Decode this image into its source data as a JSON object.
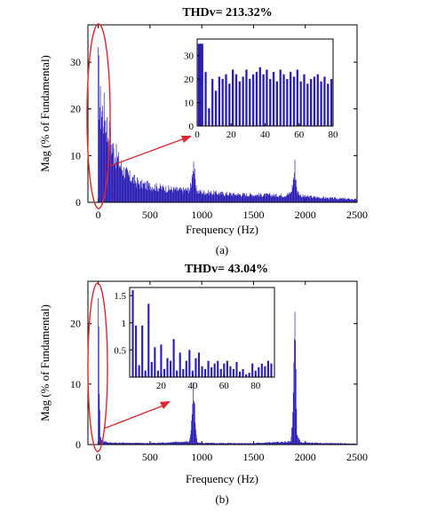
{
  "colors": {
    "spectrum": "#2a1eb4",
    "annotation": "#e3262b",
    "axis": "#000000",
    "background": "#ffffff"
  },
  "chart_data": [
    {
      "type": "bar",
      "title": "THDv= 213.32%",
      "xlabel": "Frequency (Hz)",
      "ylabel": "Mag (% of Fundamental)",
      "caption": "(a)",
      "xlim": [
        -100,
        2500
      ],
      "ylim": [
        0,
        38
      ],
      "xticks": [
        0,
        500,
        1000,
        1500,
        2000,
        2500
      ],
      "yticks": [
        0,
        10,
        20,
        30
      ],
      "grid": false,
      "spectrum_envelope": {
        "x": [
          0,
          20,
          40,
          60,
          80,
          100,
          150,
          200,
          250,
          300,
          400,
          500,
          600,
          700,
          800,
          880,
          900,
          920,
          940,
          960,
          1000,
          1200,
          1400,
          1600,
          1800,
          1860,
          1880,
          1900,
          1920,
          1960,
          2000,
          2200,
          2500
        ],
        "y": [
          35,
          26,
          25,
          24,
          22,
          19,
          14,
          11,
          8.5,
          7,
          5,
          4.5,
          4,
          3.6,
          3.3,
          3.5,
          5,
          12,
          4,
          3,
          2.8,
          2.4,
          2.1,
          2.0,
          1.9,
          2.5,
          5,
          10,
          3,
          1.8,
          1.6,
          1.2,
          0.8
        ]
      },
      "inset": {
        "type": "bar",
        "xlim": [
          0,
          80
        ],
        "ylim": [
          0,
          37
        ],
        "xticks": [
          0,
          20,
          40,
          60,
          80
        ],
        "yticks": [
          0,
          10,
          20,
          30
        ],
        "x": [
          1,
          2,
          3,
          5,
          7,
          9,
          11,
          13,
          15,
          17,
          19,
          21,
          23,
          25,
          27,
          29,
          31,
          33,
          35,
          37,
          39,
          41,
          43,
          45,
          47,
          49,
          51,
          53,
          55,
          57,
          59,
          61,
          63,
          65,
          67,
          69,
          71,
          73,
          75,
          77,
          79
        ],
        "values": [
          35,
          35,
          35,
          23,
          7.5,
          20,
          15,
          21,
          20,
          22,
          18,
          24,
          22,
          19,
          21,
          24,
          20,
          22,
          23,
          25,
          22,
          24,
          20,
          23,
          19,
          24,
          22,
          20,
          23,
          21,
          24,
          19,
          22,
          18,
          20,
          21,
          22,
          19,
          21,
          18,
          20
        ]
      },
      "highlight_range_hz": [
        -20,
        60
      ]
    },
    {
      "type": "bar",
      "title": "THDv= 43.04%",
      "xlabel": "Frequency (Hz)",
      "ylabel": "Mag (% of Fundamental)",
      "caption": "(b)",
      "xlim": [
        -100,
        2500
      ],
      "ylim": [
        0,
        27
      ],
      "xticks": [
        0,
        500,
        1000,
        1500,
        2000,
        2500
      ],
      "yticks": [
        0,
        10,
        20
      ],
      "grid": false,
      "spectrum_envelope": {
        "x": [
          0,
          20,
          50,
          100,
          500,
          880,
          900,
          920,
          940,
          960,
          1000,
          1500,
          1860,
          1880,
          1900,
          1920,
          1960,
          2500
        ],
        "y": [
          26,
          1.5,
          0.8,
          0.4,
          0.3,
          0.6,
          4,
          13,
          3,
          0.5,
          0.3,
          0.3,
          0.6,
          6,
          24,
          2,
          0.4,
          0.2
        ]
      },
      "inset": {
        "type": "bar",
        "xlim": [
          0,
          92
        ],
        "ylim": [
          0,
          1.65
        ],
        "xticks": [
          20,
          40,
          60,
          80
        ],
        "yticks": [
          0.5,
          1,
          1.5
        ],
        "x": [
          2,
          4,
          6,
          8,
          10,
          12,
          14,
          16,
          18,
          20,
          22,
          24,
          26,
          28,
          30,
          32,
          34,
          36,
          38,
          40,
          42,
          44,
          46,
          48,
          50,
          52,
          54,
          56,
          58,
          60,
          62,
          64,
          66,
          68,
          70,
          72,
          74,
          76,
          78,
          80,
          82,
          84,
          86,
          88,
          90
        ],
        "values": [
          1.6,
          0.95,
          0.22,
          0.95,
          0.12,
          1.35,
          0.28,
          0.55,
          0.12,
          0.6,
          0.15,
          0.35,
          0.3,
          0.7,
          0.12,
          0.45,
          0.15,
          0.3,
          0.5,
          0.12,
          0.35,
          0.45,
          0.2,
          0.15,
          0.3,
          0.18,
          0.25,
          0.3,
          0.15,
          0.25,
          0.3,
          0.2,
          0.15,
          0.28,
          0.1,
          0.15,
          0.05,
          0.08,
          0.25,
          0.12,
          0.18,
          0.25,
          0.2,
          0.3,
          0.25
        ]
      },
      "highlight_range_hz": [
        -20,
        40
      ]
    }
  ]
}
